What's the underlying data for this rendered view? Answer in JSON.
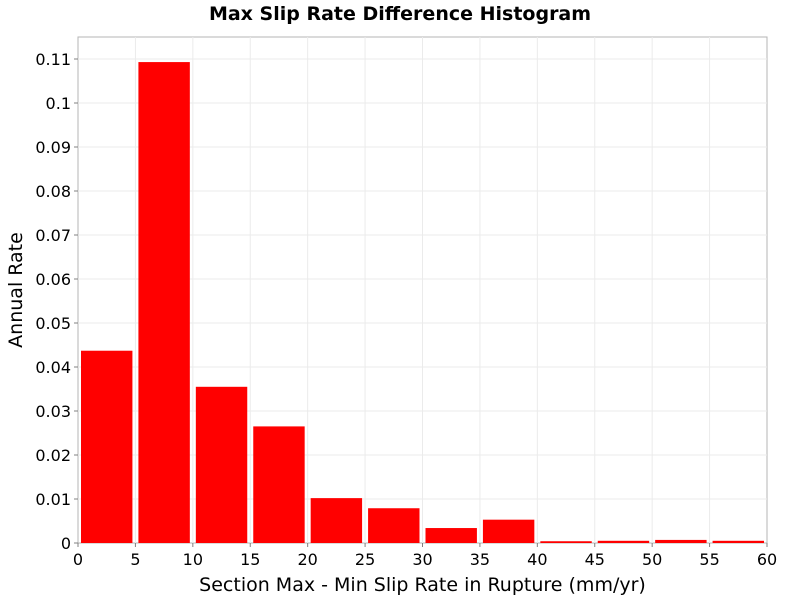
{
  "chart_data": {
    "type": "bar",
    "title": "Max Slip Rate Difference Histogram",
    "xlabel": "Section Max - Min Slip Rate in Rupture (mm/yr)",
    "ylabel": "Annual Rate",
    "xlim": [
      0,
      60
    ],
    "ylim": [
      0,
      0.115
    ],
    "bin_width": 5,
    "bins": [
      {
        "x_start": 0,
        "x_end": 5,
        "value": 0.0437
      },
      {
        "x_start": 5,
        "x_end": 10,
        "value": 0.1093
      },
      {
        "x_start": 10,
        "x_end": 15,
        "value": 0.0355
      },
      {
        "x_start": 15,
        "x_end": 20,
        "value": 0.0265
      },
      {
        "x_start": 20,
        "x_end": 25,
        "value": 0.0102
      },
      {
        "x_start": 25,
        "x_end": 30,
        "value": 0.0079
      },
      {
        "x_start": 30,
        "x_end": 35,
        "value": 0.0034
      },
      {
        "x_start": 35,
        "x_end": 40,
        "value": 0.0053
      },
      {
        "x_start": 40,
        "x_end": 45,
        "value": 0.0004
      },
      {
        "x_start": 45,
        "x_end": 50,
        "value": 0.0005
      },
      {
        "x_start": 50,
        "x_end": 55,
        "value": 0.0007
      },
      {
        "x_start": 55,
        "x_end": 60,
        "value": 0.0005
      }
    ],
    "x_ticks": [
      "0",
      "5",
      "10",
      "15",
      "20",
      "25",
      "30",
      "35",
      "40",
      "45",
      "50",
      "55",
      "60"
    ],
    "y_ticks": [
      "0",
      "0.01",
      "0.02",
      "0.03",
      "0.04",
      "0.05",
      "0.06",
      "0.07",
      "0.08",
      "0.09",
      "0.1",
      "0.11"
    ],
    "bar_color": "#ff0000",
    "grid": true,
    "legend": "none"
  }
}
